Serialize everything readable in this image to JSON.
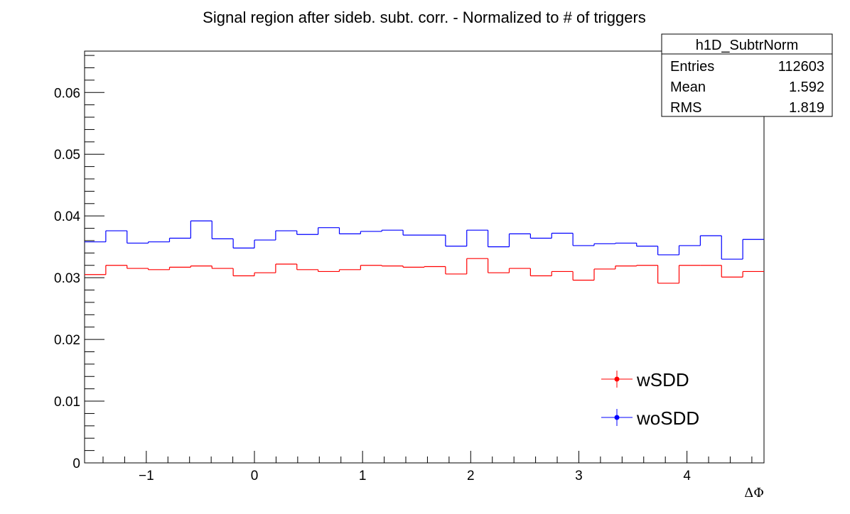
{
  "chart_data": {
    "type": "line",
    "title": "Signal region after sideb. subt. corr. - Normalized to # of triggers",
    "xlabel": "ΔΦ",
    "ylabel": "",
    "xlim": [
      -1.5708,
      4.7124
    ],
    "ylim": [
      0,
      0.0667
    ],
    "x_ticks": [
      -1,
      0,
      1,
      2,
      3,
      4
    ],
    "x_tick_labels": [
      "−1",
      "0",
      "1",
      "2",
      "3",
      "4"
    ],
    "y_ticks": [
      0,
      0.01,
      0.02,
      0.03,
      0.04,
      0.05,
      0.06
    ],
    "y_tick_labels": [
      "0",
      "0.01",
      "0.02",
      "0.03",
      "0.04",
      "0.05",
      "0.06"
    ],
    "bin_edges_from": -1.5708,
    "bin_edges_to": 4.7124,
    "n_bins": 32,
    "legend_position": "bottom-right",
    "series": [
      {
        "name": "wSDD",
        "color": "#ff0000",
        "values": [
          0.0305,
          0.032,
          0.0315,
          0.0313,
          0.0317,
          0.0319,
          0.0315,
          0.0303,
          0.0308,
          0.0322,
          0.0313,
          0.031,
          0.0313,
          0.032,
          0.0319,
          0.0317,
          0.0318,
          0.0306,
          0.0331,
          0.0308,
          0.0315,
          0.0303,
          0.031,
          0.0296,
          0.0314,
          0.0319,
          0.032,
          0.0291,
          0.032,
          0.032,
          0.0301,
          0.031
        ]
      },
      {
        "name": "woSDD",
        "color": "#0000ff",
        "values": [
          0.0358,
          0.0376,
          0.0356,
          0.0358,
          0.0364,
          0.0392,
          0.0363,
          0.0348,
          0.0361,
          0.0376,
          0.037,
          0.0381,
          0.0371,
          0.0375,
          0.0377,
          0.0369,
          0.0369,
          0.0351,
          0.0377,
          0.035,
          0.0371,
          0.0364,
          0.0372,
          0.0352,
          0.0355,
          0.0356,
          0.0351,
          0.0337,
          0.0352,
          0.0368,
          0.033,
          0.0362
        ]
      }
    ],
    "stats_box": {
      "name": "h1D_SubtrNorm",
      "rows": [
        {
          "label": "Entries",
          "value": "112603"
        },
        {
          "label": "Mean",
          "value": "1.592"
        },
        {
          "label": "RMS",
          "value": "1.819"
        }
      ]
    }
  }
}
